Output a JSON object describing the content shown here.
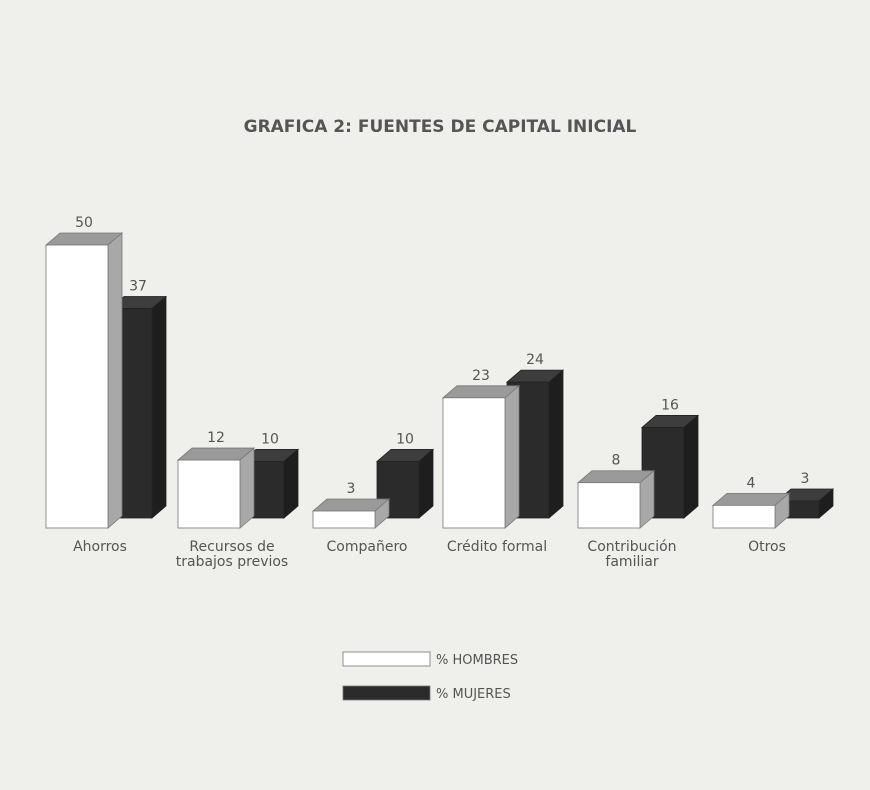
{
  "chart_data": {
    "type": "bar3d",
    "title": "GRAFICA 2: FUENTES DE CAPITAL INICIAL",
    "categories": [
      "Ahorros",
      "Recursos de trabajos previos",
      "Compañero",
      "Crédito formal",
      "Contribución familiar",
      "Otros"
    ],
    "series": [
      {
        "name": "% HOMBRES",
        "color": "#ffffff",
        "values": [
          50,
          12,
          3,
          23,
          8,
          4
        ]
      },
      {
        "name": "% MUJERES",
        "color": "#2b2b2b",
        "values": [
          37,
          10,
          10,
          24,
          16,
          3
        ]
      }
    ],
    "legend": "bottom"
  }
}
